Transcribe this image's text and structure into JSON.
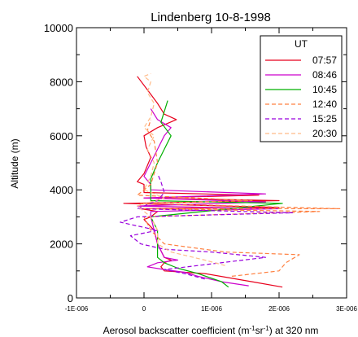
{
  "chart_data": {
    "type": "line",
    "title": "Lindenberg 10-8-1998",
    "xlabel_parts": [
      "Aerosol backscatter coefficient (m",
      "-1",
      "sr",
      "-1",
      ") at 320 nm"
    ],
    "ylabel": "Altitude (m)",
    "xlim": [
      -1e-06,
      3e-06
    ],
    "ylim": [
      0,
      10000
    ],
    "x_ticks": [
      {
        "value": -1e-06,
        "label": "-1E-006"
      },
      {
        "value": 0,
        "label": "0"
      },
      {
        "value": 1e-06,
        "label": "1E-006"
      },
      {
        "value": 2e-06,
        "label": "2E-006"
      },
      {
        "value": 3e-06,
        "label": "3E-006"
      }
    ],
    "y_ticks": [
      {
        "value": 0,
        "label": "0"
      },
      {
        "value": 2000,
        "label": "2000"
      },
      {
        "value": 4000,
        "label": "4000"
      },
      {
        "value": 6000,
        "label": "6000"
      },
      {
        "value": 8000,
        "label": "8000"
      },
      {
        "value": 10000,
        "label": "10000"
      }
    ],
    "grid": false,
    "legend": {
      "title": "UT",
      "placement": "top-right"
    },
    "series": [
      {
        "name": "07:57",
        "color": "#e8001c",
        "dash": "solid",
        "points": [
          [
            2.05e-06,
            400
          ],
          [
            1.6e-06,
            600
          ],
          [
            9e-07,
            900
          ],
          [
            3e-07,
            1000
          ],
          [
            2.5e-07,
            1150
          ],
          [
            3e-07,
            1300
          ],
          [
            4e-07,
            1400
          ],
          [
            3e-07,
            1500
          ],
          [
            2e-07,
            2000
          ],
          [
            1.5e-07,
            2500
          ],
          [
            0,
            2900
          ],
          [
            1e-07,
            3000
          ],
          [
            2e-07,
            3200
          ],
          [
            -5e-08,
            3300
          ],
          [
            2e-06,
            3350
          ],
          [
            -3e-07,
            3500
          ],
          [
            2e-06,
            3600
          ],
          [
            0,
            3700
          ],
          [
            1.7e-06,
            3800
          ],
          [
            0,
            3900
          ],
          [
            0,
            4200
          ],
          [
            -1e-07,
            4300
          ],
          [
            0,
            4600
          ],
          [
            1e-07,
            5200
          ],
          [
            3e-08,
            5600
          ],
          [
            0,
            6000
          ],
          [
            2e-07,
            6300
          ],
          [
            4.8e-07,
            6600
          ],
          [
            3e-07,
            6800
          ],
          [
            2e-07,
            7200
          ],
          [
            5e-08,
            7700
          ],
          [
            -1e-07,
            8200
          ]
        ]
      },
      {
        "name": "08:46",
        "color": "#cc00cc",
        "dash": "solid",
        "points": [
          [
            1.55e-06,
            450
          ],
          [
            1.15e-06,
            600
          ],
          [
            8e-07,
            800
          ],
          [
            6e-07,
            950
          ],
          [
            3e-07,
            1050
          ],
          [
            5e-08,
            1150
          ],
          [
            2e-07,
            1300
          ],
          [
            5e-07,
            1400
          ],
          [
            3e-07,
            1500
          ],
          [
            2e-07,
            2000
          ],
          [
            1.5e-07,
            2500
          ],
          [
            1e-07,
            3000
          ],
          [
            1e-07,
            3200
          ],
          [
            2e-06,
            3300
          ],
          [
            -1e-07,
            3400
          ],
          [
            1.8e-06,
            3550
          ],
          [
            0,
            3700
          ],
          [
            1.8e-06,
            3850
          ],
          [
            1e-07,
            4000
          ],
          [
            1e-07,
            4200
          ],
          [
            0,
            4500
          ],
          [
            1e-07,
            5000
          ],
          [
            2e-07,
            5500
          ],
          [
            3e-07,
            6000
          ],
          [
            4e-07,
            6300
          ],
          [
            2e-07,
            6600
          ],
          [
            1e-07,
            7000
          ]
        ]
      },
      {
        "name": "10:45",
        "color": "#00b000",
        "dash": "solid",
        "points": [
          [
            1.25e-06,
            400
          ],
          [
            1.15e-06,
            600
          ],
          [
            8e-07,
            900
          ],
          [
            5e-07,
            1100
          ],
          [
            3e-07,
            1300
          ],
          [
            2e-07,
            1500
          ],
          [
            2e-07,
            2000
          ],
          [
            2e-07,
            2500
          ],
          [
            1e-07,
            3000
          ],
          [
            2.05e-06,
            3500
          ],
          [
            1e-07,
            3600
          ],
          [
            1e-07,
            4000
          ],
          [
            1e-07,
            4400
          ],
          [
            2e-07,
            5000
          ],
          [
            3e-07,
            5500
          ],
          [
            4e-07,
            6000
          ],
          [
            2.5e-07,
            6500
          ],
          [
            3.5e-07,
            7300
          ]
        ]
      },
      {
        "name": "12:40",
        "color": "#ff8040",
        "dash": "dash",
        "points": [
          [
            1.3e-06,
            800
          ],
          [
            2e-06,
            1000
          ],
          [
            2.1e-06,
            1300
          ],
          [
            2.3e-06,
            1600
          ],
          [
            1.2e-06,
            1700
          ],
          [
            3e-07,
            2000
          ],
          [
            1e-07,
            2500
          ],
          [
            0,
            3000
          ],
          [
            2.6e-06,
            3200
          ],
          [
            0,
            3300
          ],
          [
            2.9e-06,
            3300
          ],
          [
            -5e-08,
            3500
          ],
          [
            1.6e-06,
            3600
          ],
          [
            -1e-07,
            3800
          ],
          [
            1e-07,
            4200
          ],
          [
            2e-07,
            5000
          ],
          [
            1.5e-07,
            5800
          ],
          [
            5e-08,
            6200
          ],
          [
            1e-07,
            6600
          ]
        ]
      },
      {
        "name": "15:25",
        "color": "#9900dd",
        "dash": "dash",
        "points": [
          [
            9e-07,
            700
          ],
          [
            6e-07,
            900
          ],
          [
            3e-07,
            1050
          ],
          [
            8e-07,
            1200
          ],
          [
            1.8e-06,
            1500
          ],
          [
            1e-06,
            1700
          ],
          [
            3e-07,
            1800
          ],
          [
            -5e-08,
            2000
          ],
          [
            -2e-07,
            2300
          ],
          [
            2e-07,
            2500
          ],
          [
            -3.5e-07,
            2800
          ],
          [
            -1e-07,
            3000
          ],
          [
            2.2e-06,
            3150
          ],
          [
            -1e-07,
            3300
          ],
          [
            2e-07,
            3600
          ],
          [
            3e-07,
            3900
          ],
          [
            2.5e-07,
            4300
          ],
          [
            2e-07,
            4600
          ]
        ]
      },
      {
        "name": "20:30",
        "color": "#ffbb88",
        "dash": "dash",
        "points": [
          [
            1.2e-06,
            1200
          ],
          [
            9e-07,
            1400
          ],
          [
            4e-07,
            1700
          ],
          [
            2e-07,
            2000
          ],
          [
            2e-07,
            2500
          ],
          [
            1e-07,
            3000
          ],
          [
            -1e-07,
            3400
          ],
          [
            3e-07,
            3700
          ],
          [
            0,
            4000
          ],
          [
            1e-07,
            4500
          ],
          [
            1.5e-07,
            5000
          ],
          [
            5e-08,
            5500
          ],
          [
            1.5e-07,
            6000
          ],
          [
            0,
            6300
          ],
          [
            1e-07,
            6700
          ],
          [
            1.5e-07,
            7200
          ],
          [
            5e-08,
            7600
          ],
          [
            1e-07,
            8000
          ],
          [
            0,
            8200
          ],
          [
            1e-07,
            8300
          ]
        ]
      }
    ]
  }
}
